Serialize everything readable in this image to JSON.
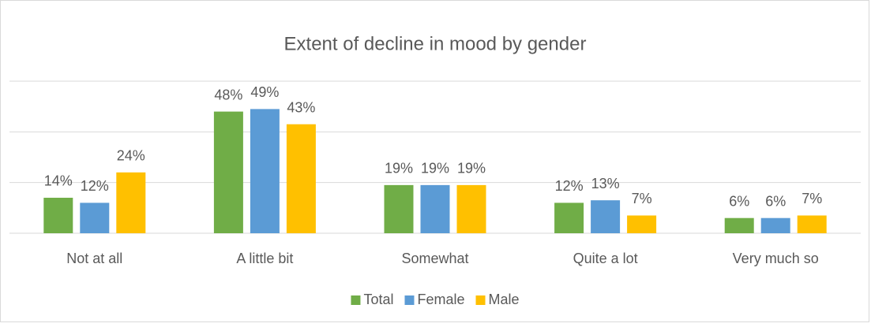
{
  "chart_data": {
    "type": "bar",
    "title": "Extent of decline in mood by gender",
    "categories": [
      "Not at all",
      "A little bit",
      "Somewhat",
      "Quite a lot",
      "Very much so"
    ],
    "series": [
      {
        "name": "Total",
        "color": "#70ad47",
        "values": [
          14,
          48,
          19,
          12,
          6
        ],
        "value_labels": [
          "14%",
          "48%",
          "19%",
          "12%",
          "6%"
        ]
      },
      {
        "name": "Female",
        "color": "#5b9bd5",
        "values": [
          12,
          49,
          19,
          13,
          6
        ],
        "value_labels": [
          "12%",
          "49%",
          "19%",
          "13%",
          "6%"
        ]
      },
      {
        "name": "Male",
        "color": "#ffc000",
        "values": [
          24,
          43,
          19,
          7,
          7
        ],
        "value_labels": [
          "24%",
          "43%",
          "19%",
          "7%",
          "7%"
        ]
      }
    ],
    "ylim": [
      0,
      60
    ],
    "yticks": [
      0,
      20,
      40,
      60
    ],
    "grid": true,
    "legend": "bottom"
  }
}
